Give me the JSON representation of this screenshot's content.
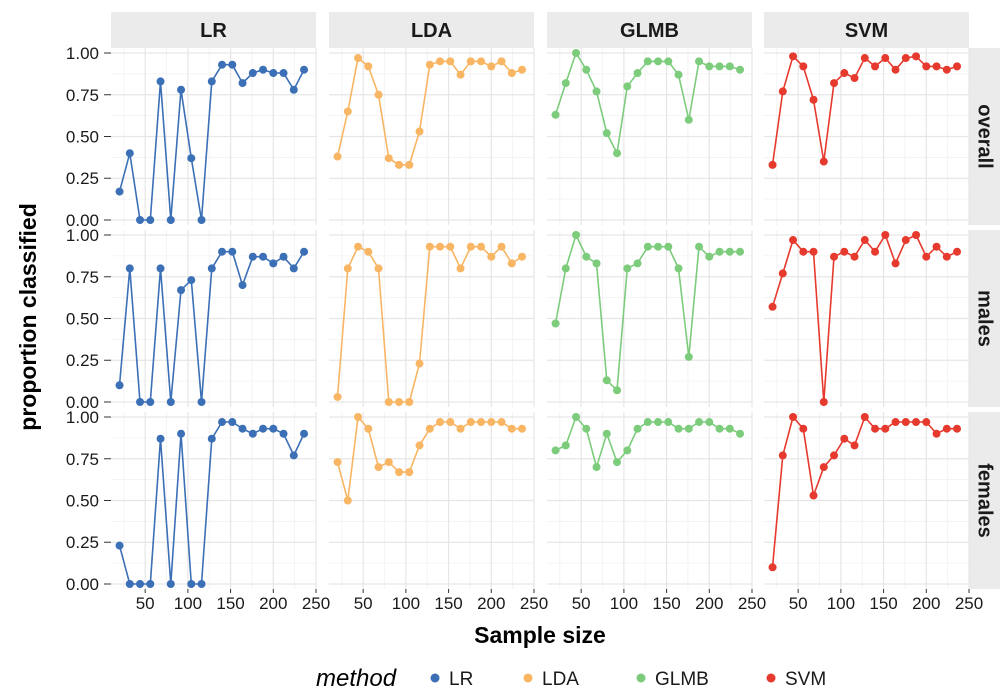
{
  "chart_data": {
    "type": "line",
    "xlabel": "Sample size",
    "ylabel": "proportion classified",
    "xlim": [
      10,
      250
    ],
    "ylim": [
      -0.03,
      1.03
    ],
    "x_ticks": [
      50,
      100,
      150,
      200,
      250
    ],
    "y_ticks": [
      0.0,
      0.25,
      0.5,
      0.75,
      1.0
    ],
    "y_tick_labels": [
      "0.00",
      "0.25",
      "0.50",
      "0.75",
      "1.00"
    ],
    "grid": true,
    "facet_cols": [
      "LR",
      "LDA",
      "GLMB",
      "SVM"
    ],
    "facet_rows": [
      "overall",
      "males",
      "females"
    ],
    "x": [
      20,
      32,
      44,
      56,
      68,
      80,
      92,
      104,
      116,
      128,
      140,
      152,
      164,
      176,
      188,
      200,
      212,
      224,
      236
    ],
    "legend": {
      "title": "method",
      "position": "bottom",
      "entries": [
        "LR",
        "LDA",
        "GLMB",
        "SVM"
      ]
    },
    "colors": {
      "LR": "#3b6fb6",
      "LDA": "#f8b563",
      "GLMB": "#7ccc7c",
      "SVM": "#e63a2e"
    },
    "series": {
      "overall": {
        "LR": [
          0.17,
          0.4,
          0.0,
          0.0,
          0.83,
          0.0,
          0.78,
          0.37,
          0.0,
          0.83,
          0.93,
          0.93,
          0.82,
          0.88,
          0.9,
          0.88,
          0.88,
          0.78,
          0.9
        ],
        "LDA": [
          0.38,
          0.65,
          0.97,
          0.92,
          0.75,
          0.37,
          0.33,
          0.33,
          0.53,
          0.93,
          0.95,
          0.95,
          0.87,
          0.95,
          0.95,
          0.92,
          0.95,
          0.88,
          0.9
        ],
        "GLMB": [
          0.63,
          0.82,
          1.0,
          0.9,
          0.77,
          0.52,
          0.4,
          0.8,
          0.88,
          0.95,
          0.95,
          0.95,
          0.87,
          0.6,
          0.95,
          0.92,
          0.92,
          0.92,
          0.9
        ],
        "SVM": [
          0.33,
          0.77,
          0.98,
          0.92,
          0.72,
          0.35,
          0.82,
          0.88,
          0.85,
          0.97,
          0.92,
          0.97,
          0.9,
          0.97,
          0.98,
          0.92,
          0.92,
          0.9,
          0.92
        ]
      },
      "males": {
        "LR": [
          0.1,
          0.8,
          0.0,
          0.0,
          0.8,
          0.0,
          0.67,
          0.73,
          0.0,
          0.8,
          0.9,
          0.9,
          0.7,
          0.87,
          0.87,
          0.83,
          0.87,
          0.8,
          0.9
        ],
        "LDA": [
          0.03,
          0.8,
          0.93,
          0.9,
          0.8,
          0.0,
          0.0,
          0.0,
          0.23,
          0.93,
          0.93,
          0.93,
          0.8,
          0.93,
          0.93,
          0.87,
          0.93,
          0.83,
          0.87
        ],
        "GLMB": [
          0.47,
          0.8,
          1.0,
          0.87,
          0.83,
          0.13,
          0.07,
          0.8,
          0.83,
          0.93,
          0.93,
          0.93,
          0.8,
          0.27,
          0.93,
          0.87,
          0.9,
          0.9,
          0.9
        ],
        "SVM": [
          0.57,
          0.77,
          0.97,
          0.9,
          0.9,
          0.0,
          0.87,
          0.9,
          0.87,
          0.97,
          0.9,
          1.0,
          0.83,
          0.97,
          1.0,
          0.87,
          0.93,
          0.87,
          0.9
        ]
      },
      "females": {
        "LR": [
          0.23,
          0.0,
          0.0,
          0.0,
          0.87,
          0.0,
          0.9,
          0.0,
          0.0,
          0.87,
          0.97,
          0.97,
          0.93,
          0.9,
          0.93,
          0.93,
          0.9,
          0.77,
          0.9
        ],
        "LDA": [
          0.73,
          0.5,
          1.0,
          0.93,
          0.7,
          0.73,
          0.67,
          0.67,
          0.83,
          0.93,
          0.97,
          0.97,
          0.93,
          0.97,
          0.97,
          0.97,
          0.97,
          0.93,
          0.93
        ],
        "GLMB": [
          0.8,
          0.83,
          1.0,
          0.93,
          0.7,
          0.9,
          0.73,
          0.8,
          0.93,
          0.97,
          0.97,
          0.97,
          0.93,
          0.93,
          0.97,
          0.97,
          0.93,
          0.93,
          0.9
        ],
        "SVM": [
          0.1,
          0.77,
          1.0,
          0.93,
          0.53,
          0.7,
          0.77,
          0.87,
          0.83,
          1.0,
          0.93,
          0.93,
          0.97,
          0.97,
          0.97,
          0.97,
          0.9,
          0.93,
          0.93
        ]
      }
    }
  }
}
